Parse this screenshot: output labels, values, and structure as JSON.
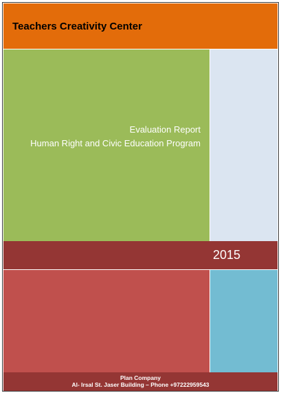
{
  "header": {
    "organization": "Teachers Creativity Center"
  },
  "title": {
    "line1": "Evaluation Report",
    "line2": "Human Right and Civic Education Program"
  },
  "year": "2015",
  "footer": {
    "company": "Plan Company",
    "address": "Al- Irsal St. Jaser Building – Phone +97222959543"
  },
  "colors": {
    "header_orange": "#E36C0A",
    "title_green": "#9BBB59",
    "side_light_blue": "#DBE5F1",
    "band_dark_red": "#943634",
    "lower_red": "#C0504D",
    "lower_teal": "#73BCD2"
  }
}
